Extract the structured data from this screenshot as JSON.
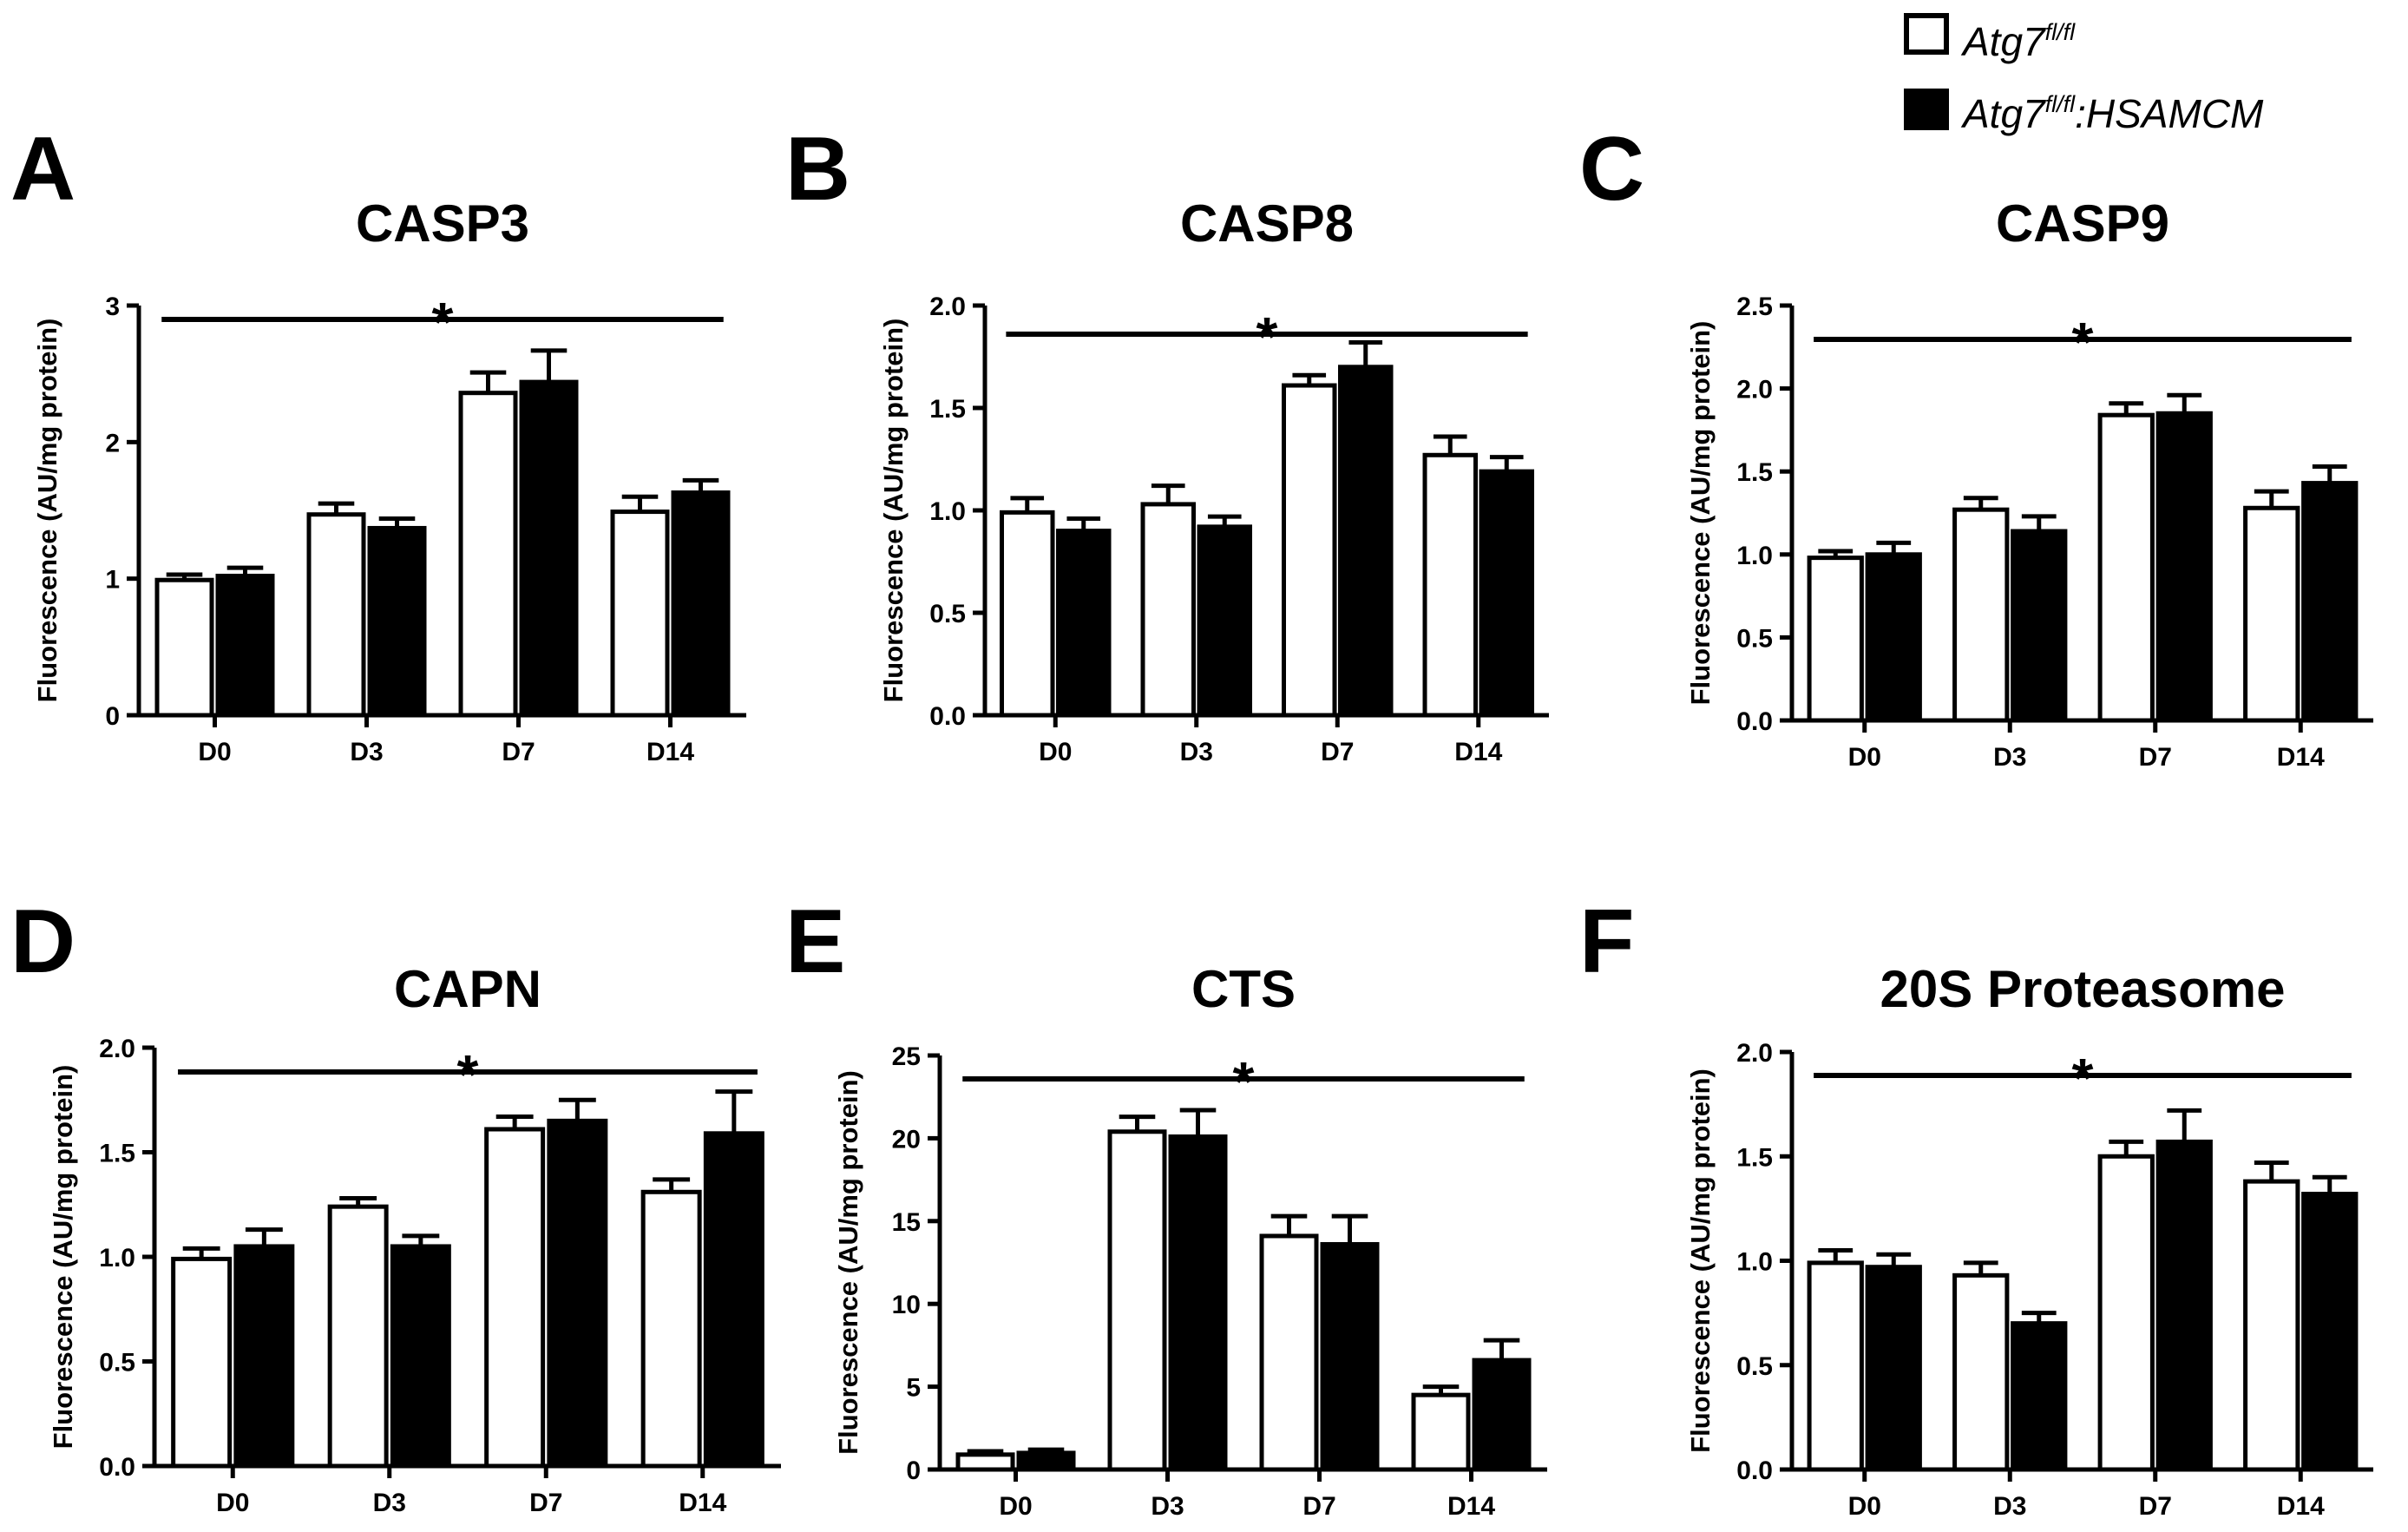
{
  "figure": {
    "legend": {
      "series": [
        {
          "name": "Atg7",
          "superscript": "fl/fl",
          "suffix": "",
          "fill": "#ffffff"
        },
        {
          "name": "Atg7",
          "superscript": "fl/fl",
          "suffix": ":HSAMCM",
          "fill": "#000000"
        }
      ]
    }
  },
  "chart_data": [
    {
      "panel": "A",
      "type": "bar",
      "title": "CASP3",
      "xlabel": "",
      "ylabel": "Fluorescence (AU/mg protein)",
      "categories": [
        "D0",
        "D3",
        "D7",
        "D14"
      ],
      "ylim": [
        0,
        3
      ],
      "yticks": [
        0,
        1,
        2,
        3
      ],
      "tick_labels": [
        "0",
        "1",
        "2",
        "3"
      ],
      "series": [
        {
          "name": "Atg7fl/fl",
          "values": [
            0.99,
            1.47,
            2.36,
            1.49
          ],
          "errors": [
            0.04,
            0.08,
            0.15,
            0.11
          ]
        },
        {
          "name": "Atg7fl/fl:HSAMCM",
          "values": [
            1.02,
            1.37,
            2.44,
            1.63
          ],
          "errors": [
            0.06,
            0.07,
            0.23,
            0.09
          ]
        }
      ],
      "significance": "*"
    },
    {
      "panel": "B",
      "type": "bar",
      "title": "CASP8",
      "xlabel": "",
      "ylabel": "Fluorescence (AU/mg protein)",
      "categories": [
        "D0",
        "D3",
        "D7",
        "D14"
      ],
      "ylim": [
        0,
        2
      ],
      "yticks": [
        0,
        0.5,
        1,
        1.5,
        2
      ],
      "tick_labels": [
        "0.0",
        "0.5",
        "1.0",
        "1.5",
        "2.0"
      ],
      "series": [
        {
          "name": "Atg7fl/fl",
          "values": [
            0.99,
            1.03,
            1.61,
            1.27
          ],
          "errors": [
            0.07,
            0.09,
            0.05,
            0.09
          ]
        },
        {
          "name": "Atg7fl/fl:HSAMCM",
          "values": [
            0.9,
            0.92,
            1.7,
            1.19
          ],
          "errors": [
            0.06,
            0.05,
            0.12,
            0.07
          ]
        }
      ],
      "significance": "*"
    },
    {
      "panel": "C",
      "type": "bar",
      "title": "CASP9",
      "xlabel": "",
      "ylabel": "Fluorescence (AU/mg protein)",
      "categories": [
        "D0",
        "D3",
        "D7",
        "D14"
      ],
      "ylim": [
        0,
        2.5
      ],
      "yticks": [
        0,
        0.5,
        1,
        1.5,
        2,
        2.5
      ],
      "tick_labels": [
        "0.0",
        "0.5",
        "1.0",
        "1.5",
        "2.0",
        "2.5"
      ],
      "series": [
        {
          "name": "Atg7fl/fl",
          "values": [
            0.98,
            1.27,
            1.84,
            1.28
          ],
          "errors": [
            0.04,
            0.07,
            0.07,
            0.1
          ]
        },
        {
          "name": "Atg7fl/fl:HSAMCM",
          "values": [
            1.0,
            1.14,
            1.85,
            1.43
          ],
          "errors": [
            0.07,
            0.09,
            0.11,
            0.1
          ]
        }
      ],
      "significance": "*"
    },
    {
      "panel": "D",
      "type": "bar",
      "title": "CAPN",
      "xlabel": "",
      "ylabel": "Fluorescence (AU/mg protein)",
      "categories": [
        "D0",
        "D3",
        "D7",
        "D14"
      ],
      "ylim": [
        0,
        2
      ],
      "yticks": [
        0,
        0.5,
        1,
        1.5,
        2
      ],
      "tick_labels": [
        "0.0",
        "0.5",
        "1.0",
        "1.5",
        "2.0"
      ],
      "series": [
        {
          "name": "Atg7fl/fl",
          "values": [
            0.99,
            1.24,
            1.61,
            1.31
          ],
          "errors": [
            0.05,
            0.04,
            0.06,
            0.06
          ]
        },
        {
          "name": "Atg7fl/fl:HSAMCM",
          "values": [
            1.05,
            1.05,
            1.65,
            1.59
          ],
          "errors": [
            0.08,
            0.05,
            0.1,
            0.2
          ]
        }
      ],
      "significance": "*"
    },
    {
      "panel": "E",
      "type": "bar",
      "title": "CTS",
      "xlabel": "",
      "ylabel": "Fluorescence (AU/mg protein)",
      "categories": [
        "D0",
        "D3",
        "D7",
        "D14"
      ],
      "ylim": [
        0,
        25
      ],
      "yticks": [
        0,
        5,
        10,
        15,
        20,
        25
      ],
      "tick_labels": [
        "0",
        "5",
        "10",
        "15",
        "20",
        "25"
      ],
      "series": [
        {
          "name": "Atg7fl/fl",
          "values": [
            0.9,
            20.4,
            14.1,
            4.5
          ],
          "errors": [
            0.2,
            0.9,
            1.2,
            0.5
          ]
        },
        {
          "name": "Atg7fl/fl:HSAMCM",
          "values": [
            1.0,
            20.1,
            13.6,
            6.6
          ],
          "errors": [
            0.2,
            1.6,
            1.7,
            1.2
          ]
        }
      ],
      "significance": "*"
    },
    {
      "panel": "F",
      "type": "bar",
      "title": "20S Proteasome",
      "xlabel": "",
      "ylabel": "Fluorescence (AU/mg protein)",
      "categories": [
        "D0",
        "D3",
        "D7",
        "D14"
      ],
      "ylim": [
        0,
        2
      ],
      "yticks": [
        0,
        0.5,
        1,
        1.5,
        2
      ],
      "tick_labels": [
        "0.0",
        "0.5",
        "1.0",
        "1.5",
        "2.0"
      ],
      "series": [
        {
          "name": "Atg7fl/fl",
          "values": [
            0.99,
            0.93,
            1.5,
            1.38
          ],
          "errors": [
            0.06,
            0.06,
            0.07,
            0.09
          ]
        },
        {
          "name": "Atg7fl/fl:HSAMCM",
          "values": [
            0.97,
            0.7,
            1.57,
            1.32
          ],
          "errors": [
            0.06,
            0.05,
            0.15,
            0.08
          ]
        }
      ],
      "significance": "*"
    }
  ]
}
